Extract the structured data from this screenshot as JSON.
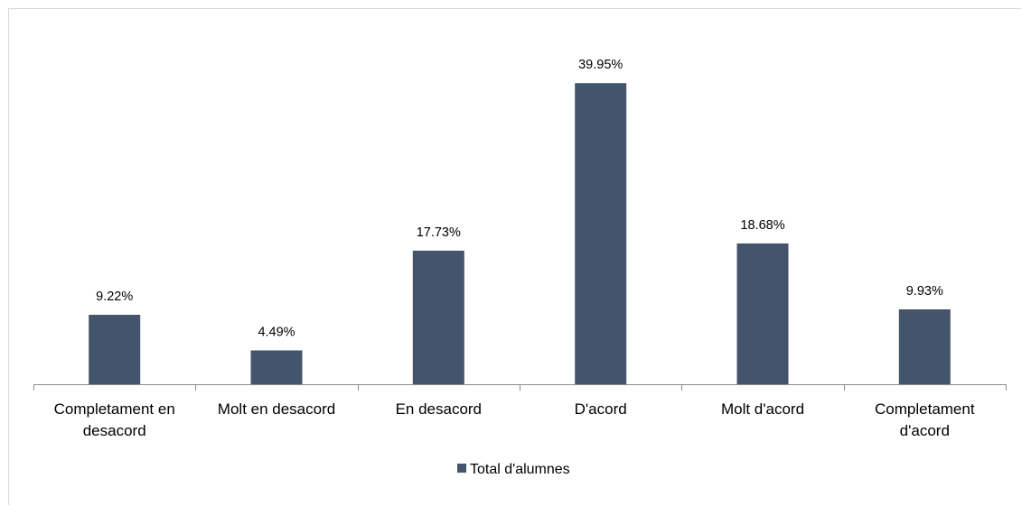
{
  "chart_data": {
    "type": "bar",
    "categories": [
      [
        "Completament en",
        "desacord"
      ],
      [
        "Molt en desacord"
      ],
      [
        "En desacord"
      ],
      [
        "D'acord"
      ],
      [
        "Molt d'acord"
      ],
      [
        "Completament",
        "d'acord"
      ]
    ],
    "series": [
      {
        "name": "Total d'alumnes",
        "values": [
          9.22,
          4.49,
          17.73,
          39.95,
          18.68,
          9.93
        ],
        "labels": [
          "9.22%",
          "4.49%",
          "17.73%",
          "39.95%",
          "18.68%",
          "9.93%"
        ],
        "color": "#44546a"
      }
    ],
    "ylim": [
      0,
      45
    ],
    "grid": false,
    "legend": "bottom",
    "axis_color": "#8c8c8c"
  }
}
